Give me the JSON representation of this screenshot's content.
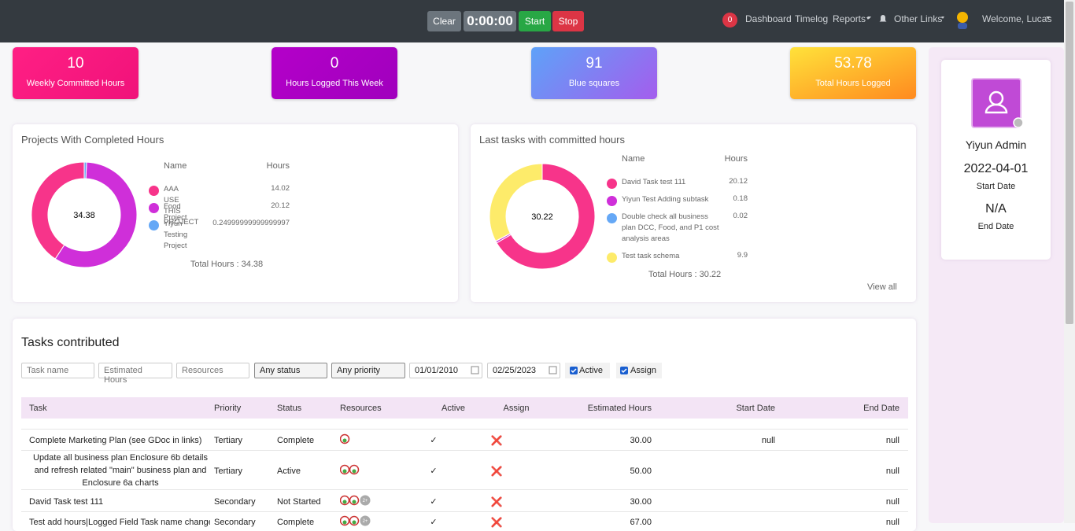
{
  "navbar": {
    "clear": "Clear",
    "timer": "0:00:00",
    "start": "Start",
    "stop": "Stop",
    "badge": "0",
    "links": [
      "Dashboard",
      "Timelog",
      "Reports",
      "Other Links"
    ],
    "welcome": "Welcome, Lucas"
  },
  "summary": [
    {
      "value": "10",
      "label": "Weekly Committed Hours"
    },
    {
      "value": "0",
      "label": "Hours Logged This Week"
    },
    {
      "value": "91",
      "label": "Blue squares"
    },
    {
      "value": "53.78",
      "label": "Total Hours Logged"
    }
  ],
  "projects": {
    "title": "Projects With Completed Hours",
    "headers": [
      "Name",
      "Hours"
    ],
    "center": 34.38,
    "items": [
      {
        "name": "AAA USE THIS PROJECT",
        "hours": 14.02,
        "color": "#f7348a"
      },
      {
        "name": "Food Project",
        "hours": 20.12,
        "color": "#cf2fd9"
      },
      {
        "name": "Yiyun Testing Project",
        "hours": 0.24999999999999997,
        "color": "#65a8f6"
      }
    ],
    "total": "Total Hours : 34.38"
  },
  "tasks_chart": {
    "title": "Last tasks with committed hours",
    "headers": [
      "Name",
      "Hours"
    ],
    "center": 30.22,
    "items": [
      {
        "name": "David Task test 111",
        "hours": 20.12,
        "color": "#f7348a"
      },
      {
        "name": "Yiyun Test Adding subtask",
        "hours": 0.18,
        "color": "#cf2fd9"
      },
      {
        "name": "Double check all business plan DCC, Food, and P1 cost analysis areas",
        "hours": 0.02,
        "color": "#65a8f6"
      },
      {
        "name": "Test task schema",
        "hours": 9.9,
        "color": "#fdeb6a"
      }
    ],
    "total": "Total Hours : 30.22",
    "view_all": "View all"
  },
  "profile": {
    "name": "Yiyun Admin",
    "start": "2022-04-01",
    "start_label": "Start Date",
    "end": "N/A",
    "end_label": "End Date"
  },
  "tasks": {
    "title": "Tasks contributed",
    "filters": {
      "task_name": "Task name",
      "estimated": "Estimated Hours",
      "resources": "Resources",
      "status": "Any status",
      "priority": "Any priority",
      "from": "01/01/2010",
      "to": "02/25/2023",
      "active": "Active",
      "assign": "Assign"
    },
    "headers": [
      "Task",
      "Priority",
      "Status",
      "Resources",
      "Active",
      "Assign",
      "Estimated Hours",
      "Start Date",
      "End Date"
    ],
    "rows": [
      {
        "task": "Complete Marketing Plan (see GDoc in links)",
        "priority": "Tertiary",
        "status": "Complete",
        "resources": 1,
        "active": "✓",
        "assign": "❌",
        "estimated": "30.00",
        "start": "null",
        "end": "null"
      },
      {
        "task": "Update all business plan Enclosure 6b details and refresh related \"main\" business plan and Enclosure 6a charts",
        "priority": "Tertiary",
        "status": "Active",
        "resources": 2,
        "active": "✓",
        "assign": "❌",
        "estimated": "50.00",
        "end": "null"
      },
      {
        "task": "David Task test 111",
        "priority": "Secondary",
        "status": "Not Started",
        "resources": 2,
        "more": "2+",
        "active": "✓",
        "assign": "❌",
        "estimated": "30.00",
        "end": "null"
      },
      {
        "task": "Test add hours|Logged Field Task name changed",
        "priority": "Secondary",
        "status": "Complete",
        "resources": 2,
        "more": "2+",
        "active": "✓",
        "assign": "❌",
        "estimated": "67.00",
        "end": "null"
      }
    ]
  }
}
